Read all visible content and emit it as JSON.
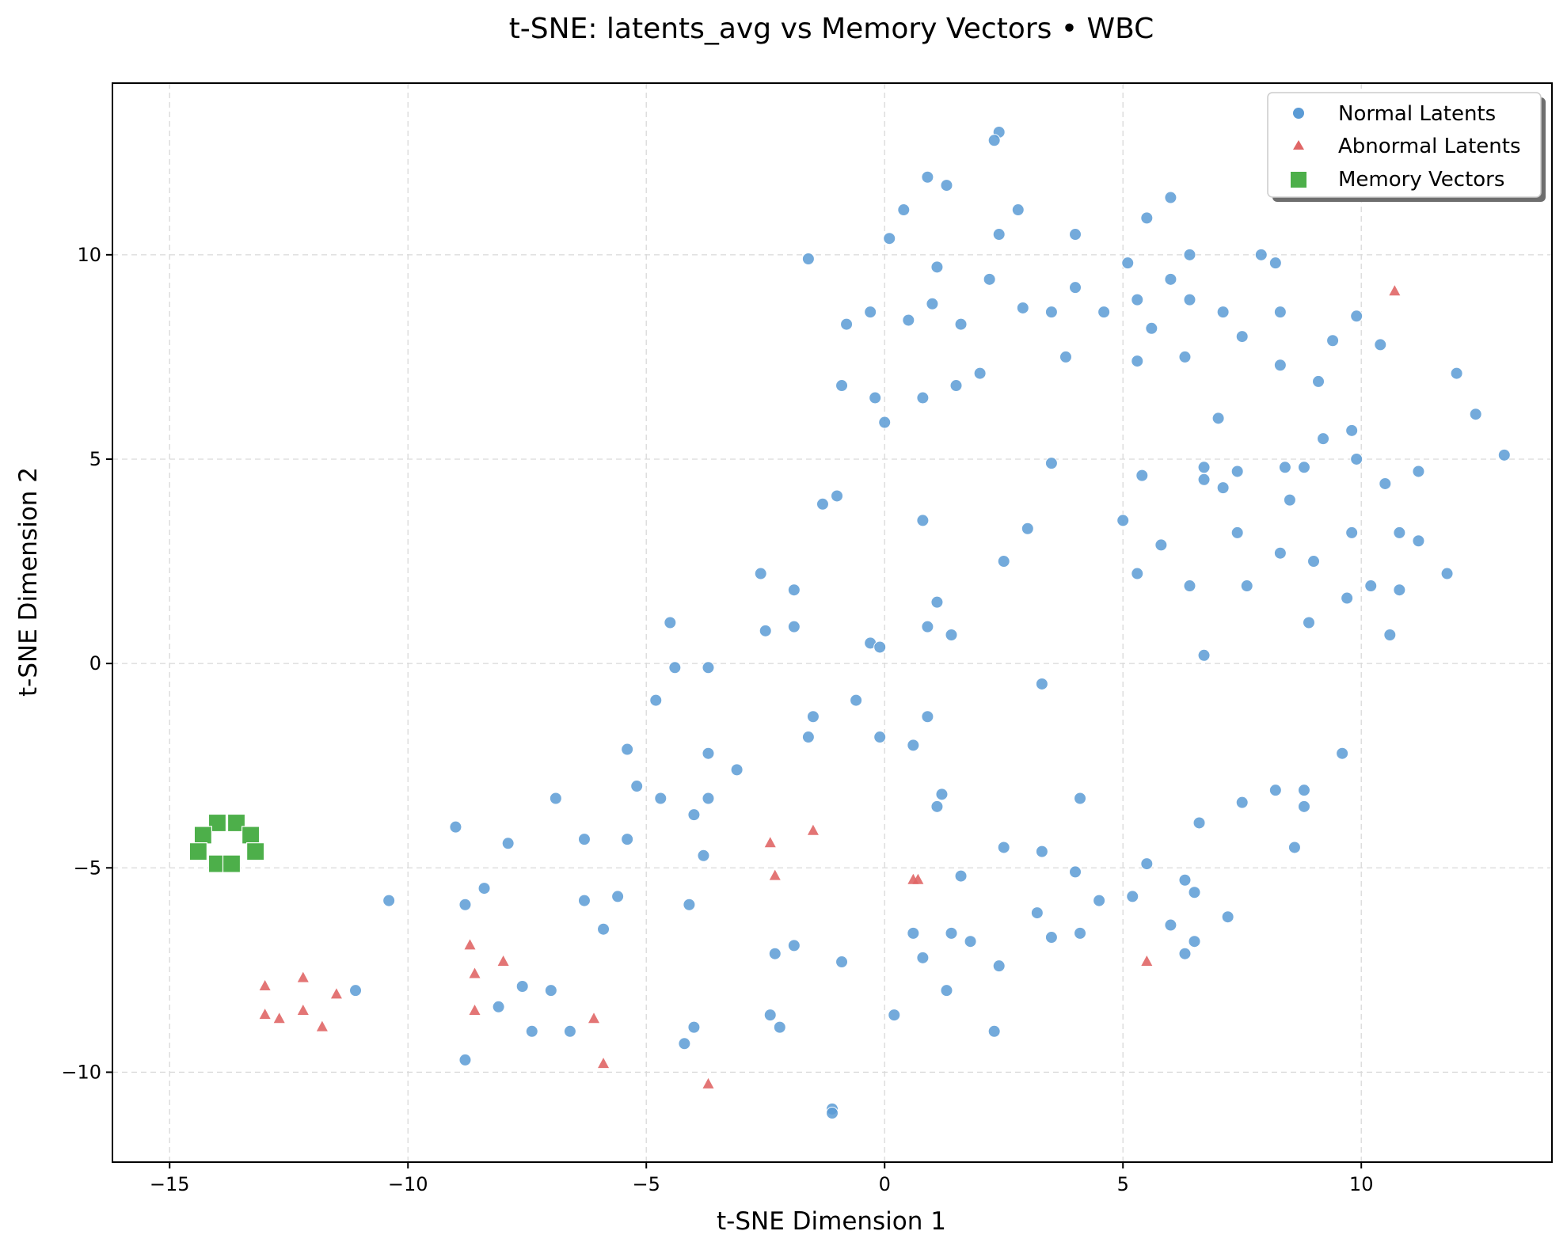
{
  "chart_data": {
    "type": "scatter",
    "title": "t-SNE: latents_avg vs Memory Vectors • WBC",
    "xlabel": "t-SNE Dimension 1",
    "ylabel": "t-SNE Dimension 2",
    "xlim": [
      -16.2,
      14.0
    ],
    "ylim": [
      -12.2,
      14.2
    ],
    "xticks": [
      -15,
      -10,
      -5,
      0,
      5,
      10
    ],
    "yticks": [
      -10,
      -5,
      0,
      5,
      10
    ],
    "xtick_labels": [
      "−15",
      "−10",
      "−5",
      "0",
      "5",
      "10"
    ],
    "ytick_labels": [
      "−10",
      "−5",
      "0",
      "5",
      "10"
    ],
    "grid": true,
    "legend_position": "top-right",
    "series": [
      {
        "name": "Normal Latents",
        "marker": "circle",
        "color": "#5b9bd5",
        "points": [
          [
            2.4,
            13.0
          ],
          [
            2.3,
            12.8
          ],
          [
            0.9,
            11.9
          ],
          [
            1.3,
            11.7
          ],
          [
            0.4,
            11.1
          ],
          [
            2.8,
            11.1
          ],
          [
            6.0,
            11.4
          ],
          [
            5.5,
            10.9
          ],
          [
            0.1,
            10.4
          ],
          [
            2.4,
            10.5
          ],
          [
            4.0,
            10.5
          ],
          [
            -1.6,
            9.9
          ],
          [
            1.1,
            9.7
          ],
          [
            5.1,
            9.8
          ],
          [
            6.4,
            10.0
          ],
          [
            7.9,
            10.0
          ],
          [
            8.2,
            9.8
          ],
          [
            2.2,
            9.4
          ],
          [
            4.0,
            9.2
          ],
          [
            6.0,
            9.4
          ],
          [
            1.0,
            8.8
          ],
          [
            2.9,
            8.7
          ],
          [
            5.3,
            8.9
          ],
          [
            6.4,
            8.9
          ],
          [
            -0.3,
            8.6
          ],
          [
            0.5,
            8.4
          ],
          [
            -0.8,
            8.3
          ],
          [
            1.6,
            8.3
          ],
          [
            3.5,
            8.6
          ],
          [
            4.6,
            8.6
          ],
          [
            7.1,
            8.6
          ],
          [
            8.3,
            8.6
          ],
          [
            5.6,
            8.2
          ],
          [
            9.9,
            8.5
          ],
          [
            7.5,
            8.0
          ],
          [
            9.4,
            7.9
          ],
          [
            10.4,
            7.8
          ],
          [
            3.8,
            7.5
          ],
          [
            5.3,
            7.4
          ],
          [
            6.3,
            7.5
          ],
          [
            8.3,
            7.3
          ],
          [
            2.0,
            7.1
          ],
          [
            12.0,
            7.1
          ],
          [
            -0.9,
            6.8
          ],
          [
            1.5,
            6.8
          ],
          [
            9.1,
            6.9
          ],
          [
            -0.2,
            6.5
          ],
          [
            0.8,
            6.5
          ],
          [
            0.0,
            5.9
          ],
          [
            7.0,
            6.0
          ],
          [
            12.4,
            6.1
          ],
          [
            9.2,
            5.5
          ],
          [
            9.8,
            5.7
          ],
          [
            13.0,
            5.1
          ],
          [
            9.9,
            5.0
          ],
          [
            3.5,
            4.9
          ],
          [
            6.7,
            4.8
          ],
          [
            8.4,
            4.8
          ],
          [
            8.8,
            4.8
          ],
          [
            7.4,
            4.7
          ],
          [
            5.4,
            4.6
          ],
          [
            6.7,
            4.5
          ],
          [
            11.2,
            4.7
          ],
          [
            7.1,
            4.3
          ],
          [
            10.5,
            4.4
          ],
          [
            -1.3,
            3.9
          ],
          [
            -1.0,
            4.1
          ],
          [
            8.5,
            4.0
          ],
          [
            0.8,
            3.5
          ],
          [
            5.0,
            3.5
          ],
          [
            3.0,
            3.3
          ],
          [
            7.4,
            3.2
          ],
          [
            9.8,
            3.2
          ],
          [
            10.8,
            3.2
          ],
          [
            11.2,
            3.0
          ],
          [
            5.8,
            2.9
          ],
          [
            8.3,
            2.7
          ],
          [
            2.5,
            2.5
          ],
          [
            9.0,
            2.5
          ],
          [
            -2.6,
            2.2
          ],
          [
            5.3,
            2.2
          ],
          [
            11.8,
            2.2
          ],
          [
            6.4,
            1.9
          ],
          [
            7.6,
            1.9
          ],
          [
            10.2,
            1.9
          ],
          [
            -1.9,
            1.8
          ],
          [
            10.8,
            1.8
          ],
          [
            9.7,
            1.6
          ],
          [
            1.1,
            1.5
          ],
          [
            -4.5,
            1.0
          ],
          [
            8.9,
            1.0
          ],
          [
            -2.5,
            0.8
          ],
          [
            -1.9,
            0.9
          ],
          [
            0.9,
            0.9
          ],
          [
            1.4,
            0.7
          ],
          [
            10.6,
            0.7
          ],
          [
            -0.3,
            0.5
          ],
          [
            -0.1,
            0.4
          ],
          [
            6.7,
            0.2
          ],
          [
            -4.4,
            -0.1
          ],
          [
            -3.7,
            -0.1
          ],
          [
            3.3,
            -0.5
          ],
          [
            -4.8,
            -0.9
          ],
          [
            -0.6,
            -0.9
          ],
          [
            -1.5,
            -1.3
          ],
          [
            0.9,
            -1.3
          ],
          [
            -1.6,
            -1.8
          ],
          [
            -0.1,
            -1.8
          ],
          [
            0.6,
            -2.0
          ],
          [
            -5.4,
            -2.1
          ],
          [
            -3.7,
            -2.2
          ],
          [
            9.6,
            -2.2
          ],
          [
            -3.1,
            -2.6
          ],
          [
            -5.2,
            -3.0
          ],
          [
            1.2,
            -3.2
          ],
          [
            8.2,
            -3.1
          ],
          [
            8.8,
            -3.1
          ],
          [
            -6.9,
            -3.3
          ],
          [
            -4.7,
            -3.3
          ],
          [
            -3.7,
            -3.3
          ],
          [
            4.1,
            -3.3
          ],
          [
            1.1,
            -3.5
          ],
          [
            7.5,
            -3.4
          ],
          [
            8.8,
            -3.5
          ],
          [
            -4.0,
            -3.7
          ],
          [
            6.6,
            -3.9
          ],
          [
            -9.0,
            -4.0
          ],
          [
            -6.3,
            -4.3
          ],
          [
            -5.4,
            -4.3
          ],
          [
            -7.9,
            -4.4
          ],
          [
            2.5,
            -4.5
          ],
          [
            3.3,
            -4.6
          ],
          [
            8.6,
            -4.5
          ],
          [
            -3.8,
            -4.7
          ],
          [
            5.5,
            -4.9
          ],
          [
            4.0,
            -5.1
          ],
          [
            1.6,
            -5.2
          ],
          [
            6.3,
            -5.3
          ],
          [
            -8.4,
            -5.5
          ],
          [
            -10.4,
            -5.8
          ],
          [
            -5.6,
            -5.7
          ],
          [
            6.5,
            -5.6
          ],
          [
            -8.8,
            -5.9
          ],
          [
            -6.3,
            -5.8
          ],
          [
            -4.1,
            -5.9
          ],
          [
            4.5,
            -5.8
          ],
          [
            5.2,
            -5.7
          ],
          [
            3.2,
            -6.1
          ],
          [
            7.2,
            -6.2
          ],
          [
            6.0,
            -6.4
          ],
          [
            -5.9,
            -6.5
          ],
          [
            0.6,
            -6.6
          ],
          [
            1.4,
            -6.6
          ],
          [
            3.5,
            -6.7
          ],
          [
            4.1,
            -6.6
          ],
          [
            -1.9,
            -6.9
          ],
          [
            1.8,
            -6.8
          ],
          [
            6.5,
            -6.8
          ],
          [
            -2.3,
            -7.1
          ],
          [
            6.3,
            -7.1
          ],
          [
            -0.9,
            -7.3
          ],
          [
            0.8,
            -7.2
          ],
          [
            2.4,
            -7.4
          ],
          [
            -11.1,
            -8.0
          ],
          [
            -7.6,
            -7.9
          ],
          [
            -7.0,
            -8.0
          ],
          [
            1.3,
            -8.0
          ],
          [
            -8.1,
            -8.4
          ],
          [
            0.2,
            -8.6
          ],
          [
            -2.4,
            -8.6
          ],
          [
            -7.4,
            -9.0
          ],
          [
            -6.6,
            -9.0
          ],
          [
            -4.0,
            -8.9
          ],
          [
            -2.2,
            -8.9
          ],
          [
            2.3,
            -9.0
          ],
          [
            -4.2,
            -9.3
          ],
          [
            -8.8,
            -9.7
          ],
          [
            -1.1,
            -10.9
          ],
          [
            -1.1,
            -11.0
          ]
        ]
      },
      {
        "name": "Abnormal Latents",
        "marker": "triangle",
        "color": "#e06666",
        "points": [
          [
            10.7,
            9.1
          ],
          [
            -1.5,
            -4.1
          ],
          [
            -2.4,
            -4.4
          ],
          [
            -2.3,
            -5.2
          ],
          [
            0.6,
            -5.3
          ],
          [
            0.7,
            -5.3
          ],
          [
            -8.7,
            -6.9
          ],
          [
            -8.0,
            -7.3
          ],
          [
            -8.6,
            -7.6
          ],
          [
            5.5,
            -7.3
          ],
          [
            -12.2,
            -7.7
          ],
          [
            -13.0,
            -7.9
          ],
          [
            -11.5,
            -8.1
          ],
          [
            -13.0,
            -8.6
          ],
          [
            -12.2,
            -8.5
          ],
          [
            -8.6,
            -8.5
          ],
          [
            -12.7,
            -8.7
          ],
          [
            -11.8,
            -8.9
          ],
          [
            -6.1,
            -8.7
          ],
          [
            -5.9,
            -9.8
          ],
          [
            -3.7,
            -10.3
          ]
        ]
      },
      {
        "name": "Memory Vectors",
        "marker": "square",
        "color": "#4daf4a",
        "points": [
          [
            -14.0,
            -3.9
          ],
          [
            -13.6,
            -3.9
          ],
          [
            -14.3,
            -4.2
          ],
          [
            -13.3,
            -4.2
          ],
          [
            -14.4,
            -4.6
          ],
          [
            -13.2,
            -4.6
          ],
          [
            -14.0,
            -4.9
          ],
          [
            -13.7,
            -4.9
          ]
        ]
      }
    ]
  }
}
